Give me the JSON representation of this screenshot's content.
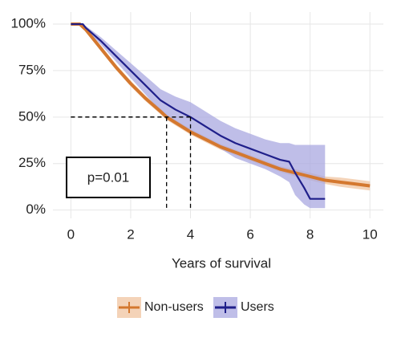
{
  "chart_data": {
    "type": "survival",
    "xlabel": "Years of survival",
    "annotation": "p=0.01",
    "xlim": [
      -0.6,
      10.45
    ],
    "ylim": [
      -4.5,
      106.5
    ],
    "xticks": [
      0,
      2,
      4,
      6,
      8,
      10
    ],
    "yticks": [
      {
        "value": 0,
        "label": "0%"
      },
      {
        "value": 25,
        "label": "25%"
      },
      {
        "value": 50,
        "label": "50%"
      },
      {
        "value": 75,
        "label": "75%"
      },
      {
        "value": 100,
        "label": "100%"
      }
    ],
    "grid": true,
    "legend": "bottom",
    "median_lines": [
      {
        "x": 3.2,
        "y": 50
      },
      {
        "x": 4,
        "y": 50
      }
    ],
    "series": [
      {
        "name": "Non-users",
        "color": "#d4782f",
        "band_color": "#f0c4a0",
        "x": [
          0,
          0.3,
          0.5,
          1,
          1.5,
          2,
          2.5,
          3,
          3.2,
          3.5,
          4,
          4.5,
          5,
          5.5,
          6,
          6.5,
          7,
          7.5,
          8,
          8.5,
          9,
          9.5,
          10
        ],
        "values": [
          100,
          100,
          97,
          87,
          77,
          68,
          60,
          53,
          50,
          47,
          42,
          38,
          34,
          31,
          28,
          25,
          22,
          20,
          18,
          16,
          15,
          14,
          13
        ],
        "lower": [
          100,
          100,
          96,
          85.5,
          75.5,
          66.5,
          58.5,
          51.5,
          48.5,
          45.5,
          40.5,
          36.5,
          32.5,
          29.5,
          26.5,
          23.5,
          20.5,
          18,
          16,
          14,
          12.5,
          11.5,
          10.5
        ],
        "upper": [
          100,
          100,
          98,
          88.5,
          78.5,
          69.5,
          61.5,
          54.5,
          51.5,
          48.5,
          43.5,
          39.5,
          35.5,
          32.5,
          29.5,
          26.5,
          23.5,
          22,
          20,
          18,
          17.5,
          16.5,
          15.5
        ]
      },
      {
        "name": "Users",
        "color": "#1f1f8a",
        "band_color": "#a9a8e0",
        "x": [
          0,
          0.4,
          0.5,
          1,
          1.5,
          2,
          2.5,
          3,
          3.5,
          4,
          4.5,
          5,
          5.5,
          6,
          6.5,
          7,
          7.3,
          7.5,
          7.8,
          8,
          8.5
        ],
        "values": [
          100,
          100,
          98,
          91,
          83,
          75,
          67,
          59,
          54,
          50,
          45,
          40,
          36,
          33,
          30,
          27,
          26,
          20,
          12,
          6,
          6
        ],
        "lower": [
          100,
          100,
          97,
          89,
          80,
          71,
          62,
          53,
          47,
          43,
          38,
          33,
          28,
          25,
          22,
          18,
          15,
          8,
          3,
          1,
          1
        ],
        "upper": [
          100,
          100,
          99,
          93,
          86,
          79,
          72,
          65,
          61,
          58,
          53,
          48,
          44,
          41,
          38,
          36,
          36,
          35,
          35,
          35,
          35
        ]
      }
    ]
  }
}
